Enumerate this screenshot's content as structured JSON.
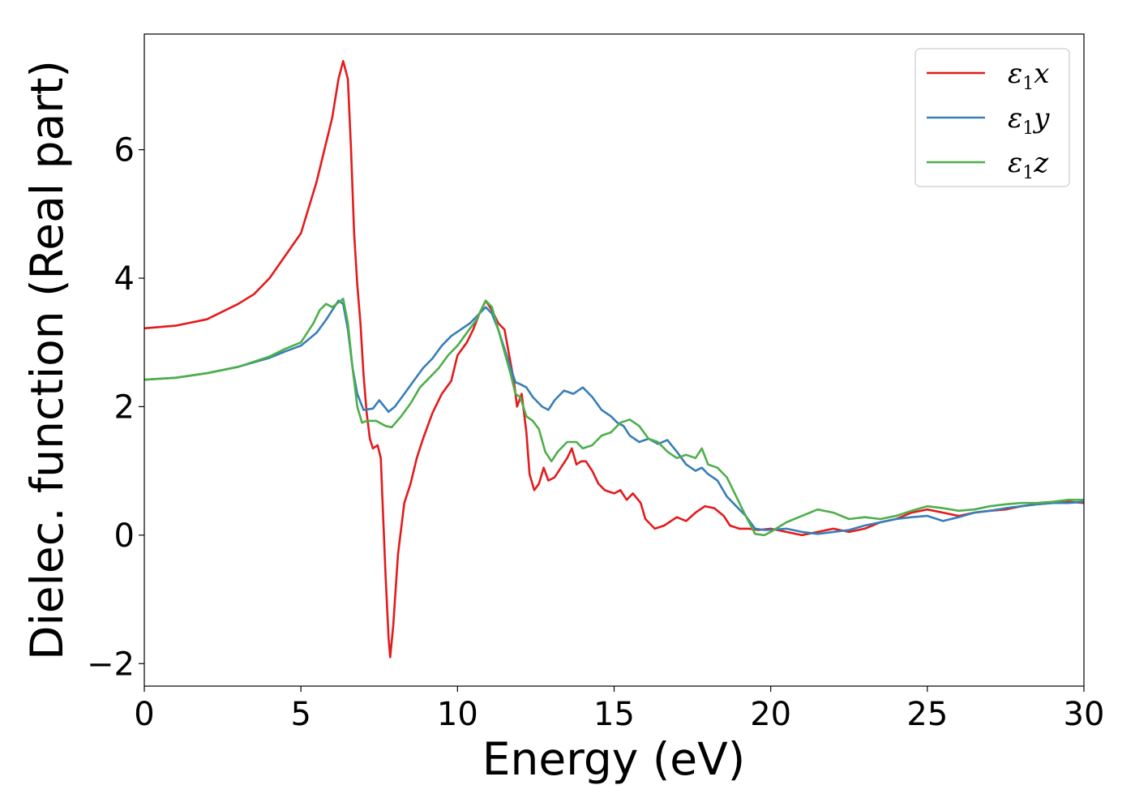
{
  "chart_data": {
    "type": "line",
    "xlabel": "Energy (eV)",
    "ylabel": "Dielec. function (Real part)",
    "xlim": [
      0,
      30
    ],
    "ylim": [
      -2.35,
      7.8
    ],
    "xticks": [
      0,
      5,
      10,
      15,
      20,
      25,
      30
    ],
    "xtick_labels": [
      "0",
      "5",
      "10",
      "15",
      "20",
      "25",
      "30"
    ],
    "yticks": [
      -2,
      0,
      2,
      4,
      6
    ],
    "ytick_labels": [
      "−2",
      "0",
      "2",
      "4",
      "6"
    ],
    "grid": false,
    "legend_position": "top-right",
    "series": [
      {
        "name": "ε₁x",
        "legend_main": "ε",
        "legend_sub": "1",
        "legend_tail": "x",
        "color": "#e41a1c",
        "points": [
          [
            0,
            3.22
          ],
          [
            1,
            3.26
          ],
          [
            2,
            3.36
          ],
          [
            3,
            3.6
          ],
          [
            3.5,
            3.75
          ],
          [
            4,
            4.0
          ],
          [
            4.5,
            4.35
          ],
          [
            5,
            4.7
          ],
          [
            5.5,
            5.5
          ],
          [
            5.8,
            6.1
          ],
          [
            6,
            6.5
          ],
          [
            6.2,
            7.1
          ],
          [
            6.35,
            7.38
          ],
          [
            6.5,
            7.1
          ],
          [
            6.6,
            6.0
          ],
          [
            6.7,
            4.7
          ],
          [
            6.8,
            3.9
          ],
          [
            6.9,
            3.3
          ],
          [
            7.0,
            2.5
          ],
          [
            7.1,
            1.9
          ],
          [
            7.2,
            1.5
          ],
          [
            7.3,
            1.35
          ],
          [
            7.45,
            1.4
          ],
          [
            7.55,
            1.2
          ],
          [
            7.6,
            0.6
          ],
          [
            7.7,
            -0.6
          ],
          [
            7.8,
            -1.6
          ],
          [
            7.85,
            -1.9
          ],
          [
            7.95,
            -1.4
          ],
          [
            8.1,
            -0.3
          ],
          [
            8.3,
            0.5
          ],
          [
            8.5,
            0.8
          ],
          [
            8.7,
            1.2
          ],
          [
            8.9,
            1.5
          ],
          [
            9.2,
            1.9
          ],
          [
            9.5,
            2.2
          ],
          [
            9.8,
            2.4
          ],
          [
            10.0,
            2.8
          ],
          [
            10.3,
            3.0
          ],
          [
            10.5,
            3.2
          ],
          [
            10.7,
            3.45
          ],
          [
            10.9,
            3.65
          ],
          [
            11.1,
            3.5
          ],
          [
            11.3,
            3.3
          ],
          [
            11.5,
            3.2
          ],
          [
            11.65,
            2.8
          ],
          [
            11.8,
            2.4
          ],
          [
            11.9,
            2.0
          ],
          [
            12.05,
            2.2
          ],
          [
            12.2,
            1.6
          ],
          [
            12.3,
            0.95
          ],
          [
            12.45,
            0.7
          ],
          [
            12.6,
            0.8
          ],
          [
            12.75,
            1.05
          ],
          [
            12.9,
            0.85
          ],
          [
            13.1,
            0.9
          ],
          [
            13.3,
            1.05
          ],
          [
            13.5,
            1.2
          ],
          [
            13.65,
            1.35
          ],
          [
            13.8,
            1.1
          ],
          [
            13.95,
            1.15
          ],
          [
            14.1,
            1.15
          ],
          [
            14.3,
            1.0
          ],
          [
            14.5,
            0.8
          ],
          [
            14.7,
            0.7
          ],
          [
            15.0,
            0.65
          ],
          [
            15.2,
            0.7
          ],
          [
            15.4,
            0.55
          ],
          [
            15.6,
            0.65
          ],
          [
            15.85,
            0.5
          ],
          [
            16.0,
            0.25
          ],
          [
            16.3,
            0.1
          ],
          [
            16.6,
            0.15
          ],
          [
            17.0,
            0.28
          ],
          [
            17.3,
            0.22
          ],
          [
            17.6,
            0.35
          ],
          [
            17.9,
            0.45
          ],
          [
            18.2,
            0.42
          ],
          [
            18.5,
            0.3
          ],
          [
            18.7,
            0.15
          ],
          [
            19.0,
            0.1
          ],
          [
            19.3,
            0.1
          ],
          [
            19.6,
            0.08
          ],
          [
            20.0,
            0.1
          ],
          [
            20.5,
            0.05
          ],
          [
            21.0,
            0.0
          ],
          [
            21.5,
            0.05
          ],
          [
            22.0,
            0.1
          ],
          [
            22.5,
            0.05
          ],
          [
            23.0,
            0.1
          ],
          [
            23.5,
            0.2
          ],
          [
            24.0,
            0.25
          ],
          [
            24.5,
            0.35
          ],
          [
            25.0,
            0.4
          ],
          [
            25.5,
            0.35
          ],
          [
            26.0,
            0.3
          ],
          [
            26.5,
            0.35
          ],
          [
            27.0,
            0.38
          ],
          [
            27.5,
            0.4
          ],
          [
            28.0,
            0.45
          ],
          [
            28.5,
            0.48
          ],
          [
            29.0,
            0.5
          ],
          [
            29.5,
            0.52
          ],
          [
            30.0,
            0.5
          ]
        ]
      },
      {
        "name": "ε₁y",
        "legend_main": "ε",
        "legend_sub": "1",
        "legend_tail": "y",
        "color": "#377eb8",
        "points": [
          [
            0,
            2.42
          ],
          [
            1,
            2.45
          ],
          [
            2,
            2.52
          ],
          [
            3,
            2.62
          ],
          [
            4,
            2.76
          ],
          [
            4.5,
            2.86
          ],
          [
            5,
            2.95
          ],
          [
            5.5,
            3.15
          ],
          [
            5.8,
            3.35
          ],
          [
            6.0,
            3.5
          ],
          [
            6.2,
            3.65
          ],
          [
            6.35,
            3.6
          ],
          [
            6.5,
            3.2
          ],
          [
            6.65,
            2.6
          ],
          [
            6.8,
            2.2
          ],
          [
            7.0,
            1.95
          ],
          [
            7.3,
            1.97
          ],
          [
            7.5,
            2.1
          ],
          [
            7.8,
            1.92
          ],
          [
            8.0,
            2.0
          ],
          [
            8.3,
            2.2
          ],
          [
            8.6,
            2.4
          ],
          [
            8.9,
            2.6
          ],
          [
            9.2,
            2.75
          ],
          [
            9.5,
            2.95
          ],
          [
            9.8,
            3.1
          ],
          [
            10.1,
            3.2
          ],
          [
            10.4,
            3.3
          ],
          [
            10.7,
            3.45
          ],
          [
            10.9,
            3.55
          ],
          [
            11.1,
            3.45
          ],
          [
            11.3,
            3.2
          ],
          [
            11.5,
            2.9
          ],
          [
            11.7,
            2.6
          ],
          [
            11.85,
            2.38
          ],
          [
            12.0,
            2.35
          ],
          [
            12.2,
            2.3
          ],
          [
            12.4,
            2.15
          ],
          [
            12.7,
            2.0
          ],
          [
            12.9,
            1.95
          ],
          [
            13.1,
            2.1
          ],
          [
            13.4,
            2.25
          ],
          [
            13.7,
            2.2
          ],
          [
            14.0,
            2.3
          ],
          [
            14.3,
            2.15
          ],
          [
            14.6,
            1.95
          ],
          [
            14.9,
            1.85
          ],
          [
            15.1,
            1.75
          ],
          [
            15.3,
            1.7
          ],
          [
            15.5,
            1.55
          ],
          [
            15.8,
            1.45
          ],
          [
            16.1,
            1.5
          ],
          [
            16.4,
            1.42
          ],
          [
            16.7,
            1.48
          ],
          [
            17.0,
            1.3
          ],
          [
            17.3,
            1.1
          ],
          [
            17.6,
            1.0
          ],
          [
            17.8,
            1.05
          ],
          [
            18.0,
            0.95
          ],
          [
            18.3,
            0.85
          ],
          [
            18.6,
            0.6
          ],
          [
            18.9,
            0.45
          ],
          [
            19.2,
            0.3
          ],
          [
            19.5,
            0.1
          ],
          [
            19.8,
            0.08
          ],
          [
            20.0,
            0.08
          ],
          [
            20.5,
            0.1
          ],
          [
            21.0,
            0.05
          ],
          [
            21.5,
            0.02
          ],
          [
            22.0,
            0.05
          ],
          [
            22.5,
            0.08
          ],
          [
            23.0,
            0.15
          ],
          [
            23.5,
            0.2
          ],
          [
            24.0,
            0.25
          ],
          [
            24.5,
            0.28
          ],
          [
            25.0,
            0.3
          ],
          [
            25.5,
            0.22
          ],
          [
            26.0,
            0.28
          ],
          [
            26.5,
            0.35
          ],
          [
            27.0,
            0.38
          ],
          [
            27.5,
            0.42
          ],
          [
            28.0,
            0.45
          ],
          [
            28.5,
            0.48
          ],
          [
            29.0,
            0.5
          ],
          [
            29.5,
            0.5
          ],
          [
            30.0,
            0.52
          ]
        ]
      },
      {
        "name": "ε₁z",
        "legend_main": "ε",
        "legend_sub": "1",
        "legend_tail": "z",
        "color": "#4daf4a",
        "points": [
          [
            0,
            2.42
          ],
          [
            1,
            2.45
          ],
          [
            2,
            2.52
          ],
          [
            3,
            2.62
          ],
          [
            4,
            2.78
          ],
          [
            4.5,
            2.9
          ],
          [
            5,
            3.0
          ],
          [
            5.4,
            3.3
          ],
          [
            5.6,
            3.5
          ],
          [
            5.8,
            3.6
          ],
          [
            6.0,
            3.55
          ],
          [
            6.2,
            3.62
          ],
          [
            6.35,
            3.68
          ],
          [
            6.5,
            3.3
          ],
          [
            6.65,
            2.6
          ],
          [
            6.8,
            2.0
          ],
          [
            6.95,
            1.75
          ],
          [
            7.1,
            1.78
          ],
          [
            7.4,
            1.78
          ],
          [
            7.7,
            1.7
          ],
          [
            7.9,
            1.68
          ],
          [
            8.2,
            1.85
          ],
          [
            8.5,
            2.05
          ],
          [
            8.8,
            2.3
          ],
          [
            9.1,
            2.45
          ],
          [
            9.4,
            2.6
          ],
          [
            9.7,
            2.8
          ],
          [
            10.0,
            2.95
          ],
          [
            10.3,
            3.15
          ],
          [
            10.6,
            3.35
          ],
          [
            10.9,
            3.65
          ],
          [
            11.1,
            3.55
          ],
          [
            11.3,
            3.2
          ],
          [
            11.5,
            2.85
          ],
          [
            11.7,
            2.5
          ],
          [
            11.85,
            2.2
          ],
          [
            12.0,
            2.15
          ],
          [
            12.2,
            1.85
          ],
          [
            12.4,
            1.78
          ],
          [
            12.6,
            1.65
          ],
          [
            12.8,
            1.3
          ],
          [
            13.0,
            1.15
          ],
          [
            13.2,
            1.3
          ],
          [
            13.5,
            1.45
          ],
          [
            13.8,
            1.45
          ],
          [
            14.0,
            1.35
          ],
          [
            14.3,
            1.4
          ],
          [
            14.6,
            1.55
          ],
          [
            14.9,
            1.6
          ],
          [
            15.2,
            1.75
          ],
          [
            15.5,
            1.8
          ],
          [
            15.8,
            1.7
          ],
          [
            16.1,
            1.5
          ],
          [
            16.4,
            1.45
          ],
          [
            16.7,
            1.3
          ],
          [
            17.0,
            1.2
          ],
          [
            17.3,
            1.25
          ],
          [
            17.6,
            1.2
          ],
          [
            17.8,
            1.35
          ],
          [
            18.0,
            1.1
          ],
          [
            18.3,
            1.05
          ],
          [
            18.6,
            0.9
          ],
          [
            18.9,
            0.6
          ],
          [
            19.2,
            0.3
          ],
          [
            19.5,
            0.02
          ],
          [
            19.8,
            0.0
          ],
          [
            20.0,
            0.05
          ],
          [
            20.5,
            0.2
          ],
          [
            21.0,
            0.3
          ],
          [
            21.5,
            0.4
          ],
          [
            22.0,
            0.35
          ],
          [
            22.5,
            0.25
          ],
          [
            23.0,
            0.28
          ],
          [
            23.5,
            0.25
          ],
          [
            24.0,
            0.3
          ],
          [
            24.5,
            0.38
          ],
          [
            25.0,
            0.45
          ],
          [
            25.5,
            0.42
          ],
          [
            26.0,
            0.38
          ],
          [
            26.5,
            0.4
          ],
          [
            27.0,
            0.45
          ],
          [
            27.5,
            0.48
          ],
          [
            28.0,
            0.5
          ],
          [
            28.5,
            0.5
          ],
          [
            29.0,
            0.52
          ],
          [
            29.5,
            0.55
          ],
          [
            30.0,
            0.55
          ]
        ]
      }
    ]
  }
}
